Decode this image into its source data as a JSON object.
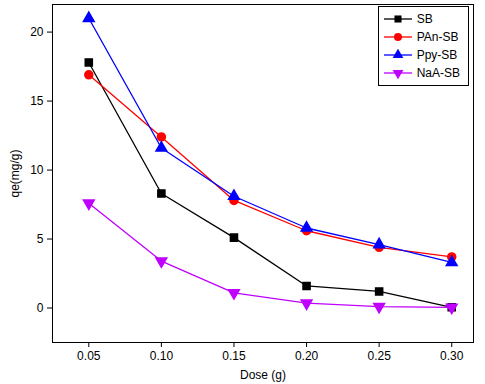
{
  "chart_data": {
    "type": "line",
    "x_label": "Dose (g)",
    "y_label": "qe(mg/g)",
    "x": [
      0.05,
      0.1,
      0.15,
      0.2,
      0.25,
      0.3
    ],
    "series": [
      {
        "name": "SB",
        "color": "#000000",
        "marker": "square",
        "values": [
          17.8,
          8.3,
          5.1,
          1.6,
          1.2,
          0.05
        ]
      },
      {
        "name": "PAn-SB",
        "color": "#ff0000",
        "marker": "circle",
        "values": [
          16.9,
          12.4,
          7.8,
          5.6,
          4.4,
          3.7
        ]
      },
      {
        "name": "Ppy-SB",
        "color": "#0000ff",
        "marker": "triangle",
        "values": [
          21.0,
          11.6,
          8.1,
          5.8,
          4.6,
          3.3
        ]
      },
      {
        "name": "NaA-SB",
        "color": "#c000ff",
        "marker": "triangle_down",
        "values": [
          7.6,
          3.4,
          1.1,
          0.35,
          0.1,
          0.05
        ]
      }
    ],
    "xlim": [
      0.025,
      0.315
    ],
    "xticks": [
      0.05,
      {
        "value": 0.1,
        "label": "0.10"
      },
      0.15,
      {
        "value": 0.2,
        "label": "0.20"
      },
      0.25,
      {
        "value": 0.3,
        "label": "0.30"
      }
    ],
    "ylim": [
      -2.5,
      22
    ],
    "yticks": [
      0,
      5,
      10,
      15,
      20
    ],
    "grid": false,
    "legend": "upper right"
  }
}
